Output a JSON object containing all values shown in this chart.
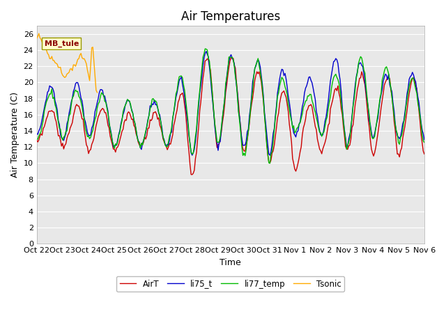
{
  "title": "Air Temperatures",
  "xlabel": "Time",
  "ylabel": "Air Temperature (C)",
  "ylim": [
    0,
    27
  ],
  "yticks": [
    0,
    2,
    4,
    6,
    8,
    10,
    12,
    14,
    16,
    18,
    20,
    22,
    24,
    26
  ],
  "xtick_labels": [
    "Oct 22",
    "Oct 23",
    "Oct 24",
    "Oct 25",
    "Oct 26",
    "Oct 27",
    "Oct 28",
    "Oct 29",
    "Oct 30",
    "Oct 31",
    "Nov 1",
    "Nov 2",
    "Nov 3",
    "Nov 4",
    "Nov 5",
    "Nov 6"
  ],
  "series": {
    "AirT": {
      "color": "#cc0000",
      "linewidth": 1.0
    },
    "li75_t": {
      "color": "#0000cc",
      "linewidth": 1.0
    },
    "li77_temp": {
      "color": "#00bb00",
      "linewidth": 1.0
    },
    "Tsonic": {
      "color": "#ffaa00",
      "linewidth": 1.0
    }
  },
  "plot_bg_color": "#e8e8e8",
  "fig_bg_color": "#ffffff",
  "grid_color": "#ffffff",
  "title_fontsize": 12,
  "label_fontsize": 9,
  "tick_fontsize": 8
}
